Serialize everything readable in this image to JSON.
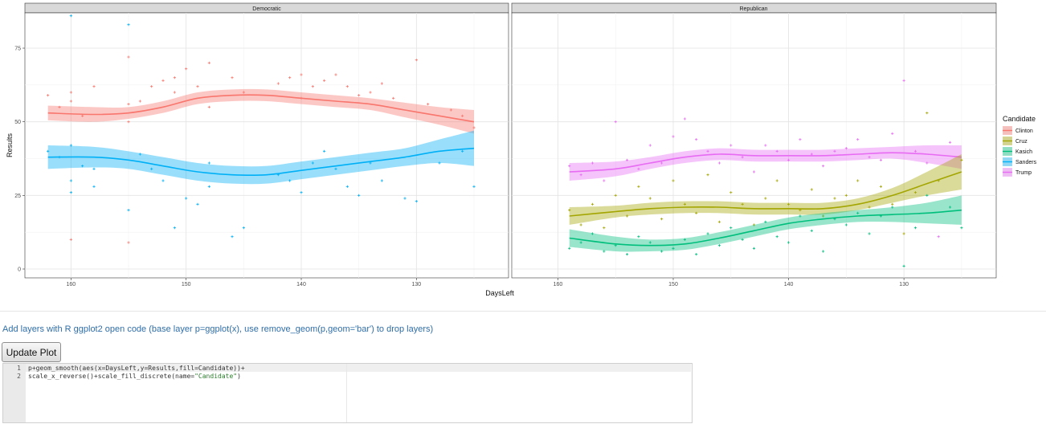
{
  "plot": {
    "panels": [
      "Democratic",
      "Republican"
    ],
    "x_axis_title": "DaysLeft",
    "y_axis_title": "Results",
    "x_ticks": [
      160,
      150,
      140,
      130
    ],
    "y_ticks": [
      0,
      25,
      50,
      75
    ],
    "legend": {
      "title": "Candidate",
      "entries": [
        {
          "name": "Clinton",
          "color": "#F8766D"
        },
        {
          "name": "Cruz",
          "color": "#A3A500"
        },
        {
          "name": "Kasich",
          "color": "#00BF7D"
        },
        {
          "name": "Sanders",
          "color": "#00B0F6"
        },
        {
          "name": "Trump",
          "color": "#E76BF3"
        }
      ]
    }
  },
  "chart_data": {
    "type": "scatter",
    "title": "",
    "xlabel": "DaysLeft",
    "ylabel": "Results",
    "x_reversed": true,
    "xlim": [
      122,
      164
    ],
    "ylim": [
      -3,
      87
    ],
    "series": [
      {
        "name": "Clinton",
        "panel": "Democratic",
        "color": "#F8766D",
        "smooth": [
          [
            162,
            53
          ],
          [
            158,
            52.5
          ],
          [
            155,
            53
          ],
          [
            152,
            55
          ],
          [
            149,
            58
          ],
          [
            146,
            59
          ],
          [
            143,
            59
          ],
          [
            140,
            58
          ],
          [
            137,
            57
          ],
          [
            134,
            56
          ],
          [
            131,
            54
          ],
          [
            128,
            52
          ],
          [
            125,
            50
          ]
        ],
        "band": [
          2.5,
          2.5,
          2,
          2,
          2,
          2,
          2,
          2,
          2,
          2,
          2.5,
          3,
          4
        ],
        "points": [
          [
            162,
            59
          ],
          [
            161,
            55
          ],
          [
            160,
            60
          ],
          [
            160,
            57
          ],
          [
            160,
            10
          ],
          [
            159,
            52
          ],
          [
            158,
            62
          ],
          [
            155,
            72
          ],
          [
            155,
            56
          ],
          [
            155,
            50
          ],
          [
            155,
            9
          ],
          [
            154,
            57
          ],
          [
            153,
            62
          ],
          [
            152,
            64
          ],
          [
            151,
            65
          ],
          [
            151,
            60
          ],
          [
            150,
            68
          ],
          [
            149,
            62
          ],
          [
            148,
            70
          ],
          [
            148,
            55
          ],
          [
            146,
            65
          ],
          [
            145,
            60
          ],
          [
            142,
            63
          ],
          [
            141,
            65
          ],
          [
            140,
            66
          ],
          [
            140,
            58
          ],
          [
            139,
            62
          ],
          [
            138,
            64
          ],
          [
            137,
            66
          ],
          [
            136,
            62
          ],
          [
            135,
            59
          ],
          [
            134,
            60
          ],
          [
            133,
            63
          ],
          [
            132,
            58
          ],
          [
            130,
            71
          ],
          [
            129,
            56
          ],
          [
            127,
            54
          ],
          [
            126,
            52
          ],
          [
            125,
            48
          ]
        ]
      },
      {
        "name": "Sanders",
        "panel": "Democratic",
        "color": "#00B0F6",
        "smooth": [
          [
            162,
            38
          ],
          [
            158,
            38
          ],
          [
            155,
            37
          ],
          [
            152,
            35
          ],
          [
            149,
            33
          ],
          [
            146,
            32
          ],
          [
            143,
            32
          ],
          [
            140,
            33.5
          ],
          [
            137,
            35
          ],
          [
            134,
            36.5
          ],
          [
            131,
            38
          ],
          [
            128,
            40
          ],
          [
            125,
            41
          ]
        ],
        "band": [
          4,
          3.5,
          3,
          3,
          3,
          3,
          3,
          3,
          3,
          3,
          3,
          4,
          6
        ],
        "points": [
          [
            162,
            40
          ],
          [
            161,
            38
          ],
          [
            160,
            86
          ],
          [
            160,
            42
          ],
          [
            160,
            30
          ],
          [
            160,
            26
          ],
          [
            159,
            35
          ],
          [
            158,
            34
          ],
          [
            158,
            28
          ],
          [
            155,
            83
          ],
          [
            155,
            20
          ],
          [
            154,
            39
          ],
          [
            153,
            34
          ],
          [
            152,
            30
          ],
          [
            151,
            14
          ],
          [
            150,
            24
          ],
          [
            149,
            22
          ],
          [
            148,
            36
          ],
          [
            148,
            28
          ],
          [
            146,
            11
          ],
          [
            145,
            14
          ],
          [
            142,
            32
          ],
          [
            141,
            30
          ],
          [
            140,
            26
          ],
          [
            139,
            36
          ],
          [
            138,
            40
          ],
          [
            137,
            34
          ],
          [
            136,
            28
          ],
          [
            135,
            25
          ],
          [
            134,
            36
          ],
          [
            133,
            30
          ],
          [
            131,
            24
          ],
          [
            130,
            23
          ],
          [
            128,
            36
          ],
          [
            126,
            40
          ],
          [
            125,
            28
          ]
        ]
      },
      {
        "name": "Trump",
        "panel": "Republican",
        "color": "#E76BF3",
        "smooth": [
          [
            159,
            33
          ],
          [
            155,
            34
          ],
          [
            152,
            36
          ],
          [
            149,
            38
          ],
          [
            146,
            39
          ],
          [
            143,
            38.5
          ],
          [
            140,
            38.5
          ],
          [
            137,
            38.5
          ],
          [
            134,
            39
          ],
          [
            131,
            39.5
          ],
          [
            128,
            39
          ],
          [
            125,
            38
          ]
        ],
        "band": [
          3,
          2.5,
          2,
          2,
          2,
          2,
          2,
          2,
          2,
          2,
          3,
          4
        ],
        "points": [
          [
            159,
            35
          ],
          [
            158,
            32
          ],
          [
            157,
            36
          ],
          [
            156,
            30
          ],
          [
            155,
            50
          ],
          [
            154,
            37
          ],
          [
            153,
            34
          ],
          [
            152,
            42
          ],
          [
            151,
            36
          ],
          [
            150,
            45
          ],
          [
            149,
            51
          ],
          [
            148,
            44
          ],
          [
            147,
            40
          ],
          [
            146,
            36
          ],
          [
            145,
            42
          ],
          [
            144,
            38
          ],
          [
            143,
            33
          ],
          [
            142,
            42
          ],
          [
            141,
            40
          ],
          [
            140,
            37
          ],
          [
            139,
            44
          ],
          [
            138,
            39
          ],
          [
            137,
            35
          ],
          [
            136,
            40
          ],
          [
            135,
            41
          ],
          [
            134,
            44
          ],
          [
            133,
            38
          ],
          [
            132,
            37
          ],
          [
            131,
            46
          ],
          [
            130,
            64
          ],
          [
            129,
            40
          ],
          [
            128,
            36
          ],
          [
            127,
            11
          ],
          [
            126,
            43
          ]
        ]
      },
      {
        "name": "Cruz",
        "panel": "Republican",
        "color": "#A3A500",
        "smooth": [
          [
            159,
            18
          ],
          [
            155,
            19.5
          ],
          [
            152,
            20.5
          ],
          [
            149,
            21
          ],
          [
            146,
            21
          ],
          [
            143,
            20.5
          ],
          [
            140,
            20.5
          ],
          [
            137,
            20.5
          ],
          [
            134,
            22
          ],
          [
            131,
            25
          ],
          [
            128,
            29
          ],
          [
            125,
            33
          ]
        ],
        "band": [
          3,
          2,
          2,
          2,
          2,
          2,
          2,
          2,
          2,
          2.5,
          4,
          6
        ],
        "points": [
          [
            159,
            20
          ],
          [
            158,
            15
          ],
          [
            157,
            22
          ],
          [
            156,
            14
          ],
          [
            155,
            25
          ],
          [
            154,
            18
          ],
          [
            153,
            28
          ],
          [
            152,
            24
          ],
          [
            151,
            17
          ],
          [
            150,
            30
          ],
          [
            149,
            22
          ],
          [
            148,
            19
          ],
          [
            147,
            32
          ],
          [
            146,
            16
          ],
          [
            145,
            26
          ],
          [
            144,
            22
          ],
          [
            143,
            15
          ],
          [
            142,
            24
          ],
          [
            141,
            30
          ],
          [
            140,
            22
          ],
          [
            139,
            20
          ],
          [
            138,
            27
          ],
          [
            137,
            18
          ],
          [
            136,
            24
          ],
          [
            135,
            25
          ],
          [
            134,
            30
          ],
          [
            133,
            21
          ],
          [
            132,
            28
          ],
          [
            131,
            22
          ],
          [
            130,
            12
          ],
          [
            129,
            26
          ],
          [
            128,
            53
          ],
          [
            127,
            30
          ],
          [
            125,
            37
          ]
        ]
      },
      {
        "name": "Kasich",
        "panel": "Republican",
        "color": "#00BF7D",
        "smooth": [
          [
            159,
            10.5
          ],
          [
            155,
            8.5
          ],
          [
            152,
            8
          ],
          [
            149,
            8.5
          ],
          [
            146,
            10.5
          ],
          [
            143,
            13
          ],
          [
            140,
            15.5
          ],
          [
            137,
            17
          ],
          [
            134,
            18
          ],
          [
            131,
            18.5
          ],
          [
            128,
            19
          ],
          [
            125,
            20
          ]
        ],
        "band": [
          3,
          2.5,
          2,
          2,
          2,
          2,
          2,
          2,
          2,
          2.5,
          3.5,
          5
        ],
        "points": [
          [
            159,
            7
          ],
          [
            158,
            9
          ],
          [
            157,
            12
          ],
          [
            156,
            6
          ],
          [
            155,
            8
          ],
          [
            154,
            5
          ],
          [
            153,
            11
          ],
          [
            152,
            9
          ],
          [
            151,
            6
          ],
          [
            150,
            7
          ],
          [
            149,
            10
          ],
          [
            148,
            5
          ],
          [
            147,
            12
          ],
          [
            146,
            8
          ],
          [
            145,
            14
          ],
          [
            144,
            10
          ],
          [
            143,
            7
          ],
          [
            142,
            16
          ],
          [
            141,
            11
          ],
          [
            140,
            9
          ],
          [
            139,
            18
          ],
          [
            138,
            13
          ],
          [
            137,
            6
          ],
          [
            136,
            17
          ],
          [
            135,
            15
          ],
          [
            134,
            19
          ],
          [
            133,
            12
          ],
          [
            132,
            18
          ],
          [
            131,
            21
          ],
          [
            130,
            1
          ],
          [
            129,
            14
          ],
          [
            128,
            25
          ],
          [
            126,
            21
          ],
          [
            125,
            14
          ]
        ]
      }
    ]
  },
  "instructions": "Add layers with R ggplot2 open code (base layer p=ggplot(x), use remove_geom(p,geom='bar') to drop layers)",
  "update_button": "Update Plot",
  "editor": {
    "line_numbers": [
      "1",
      "2"
    ],
    "line1_pre": "p+geom_smooth(aes(x=DaysLeft,y=Results,fill=Candidate))+",
    "line2_pre": "scale_x_reverse()+scale_fill_discrete(name=",
    "line2_str": "\"Candidate\"",
    "line2_post": ")"
  }
}
